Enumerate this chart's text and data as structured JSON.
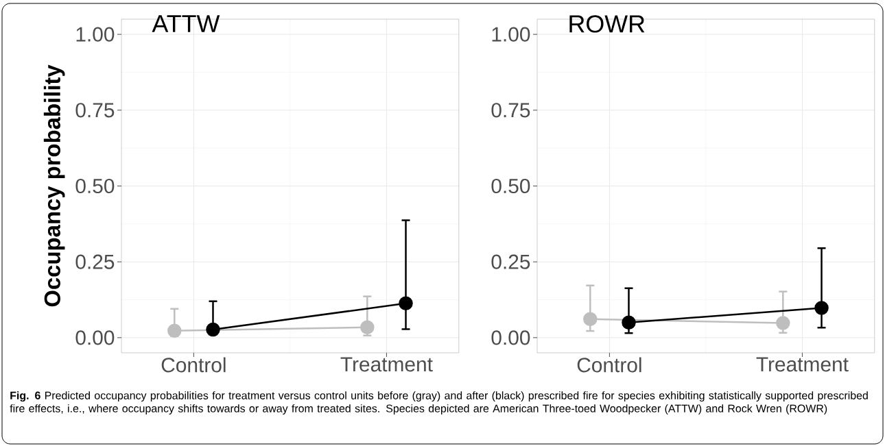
{
  "chart_data": [
    {
      "type": "line",
      "title": "ATTW",
      "ylabel": "Occupancy probability",
      "categories": [
        "Control",
        "Treatment"
      ],
      "series": [
        {
          "color": "#bebebe",
          "values": [
            0.023,
            0.034
          ],
          "errors": [
            [
              0.005,
              0.095
            ],
            [
              0.007,
              0.136
            ]
          ]
        },
        {
          "color": "#000000",
          "values": [
            0.027,
            0.113
          ],
          "errors": [
            [
              0.01,
              0.12
            ],
            [
              0.028,
              0.387
            ]
          ]
        }
      ],
      "ylim": [
        -0.05,
        1.05
      ],
      "yticks": [
        {
          "value": 0,
          "label": "0.00"
        },
        {
          "value": 0.25,
          "label": "0.25"
        },
        {
          "value": 0.5,
          "label": "0.50"
        },
        {
          "value": 0.75,
          "label": "0.75"
        },
        {
          "value": 1,
          "label": "1.00"
        }
      ],
      "grid": true,
      "marker": "circle",
      "line_style": "solid",
      "annotations": [
        "**Fig. 6** Predicted occupancy probabilities for treatment versus control units before (gray) and after (black) prescribed fire for species exhibiting statistically supported prescribed fire effects, i.e., where occupancy shifts towards or away from treated sites. Species depicted are American Three-toed Woodpecker (ATTW) and Rock Wren (ROWR)"
      ]
    },
    {
      "type": "line",
      "title": "ROWR",
      "categories": [
        "Control",
        "Treatment"
      ],
      "series": [
        {
          "color": "#bebebe",
          "values": [
            0.061,
            0.048
          ],
          "errors": [
            [
              0.022,
              0.172
            ],
            [
              0.016,
              0.152
            ]
          ]
        },
        {
          "color": "#000000",
          "values": [
            0.05,
            0.098
          ],
          "errors": [
            [
              0.015,
              0.163
            ],
            [
              0.033,
              0.295
            ]
          ]
        }
      ],
      "ylim": [
        -0.05,
        1.05
      ],
      "yticks": [
        {
          "value": 0,
          "label": "0.00"
        },
        {
          "value": 0.25,
          "label": "0.25"
        },
        {
          "value": 0.5,
          "label": "0.50"
        },
        {
          "value": 0.75,
          "label": "0.75"
        },
        {
          "value": 1,
          "label": "1.00"
        }
      ],
      "grid": true,
      "marker": "circle",
      "line_style": "solid"
    }
  ]
}
